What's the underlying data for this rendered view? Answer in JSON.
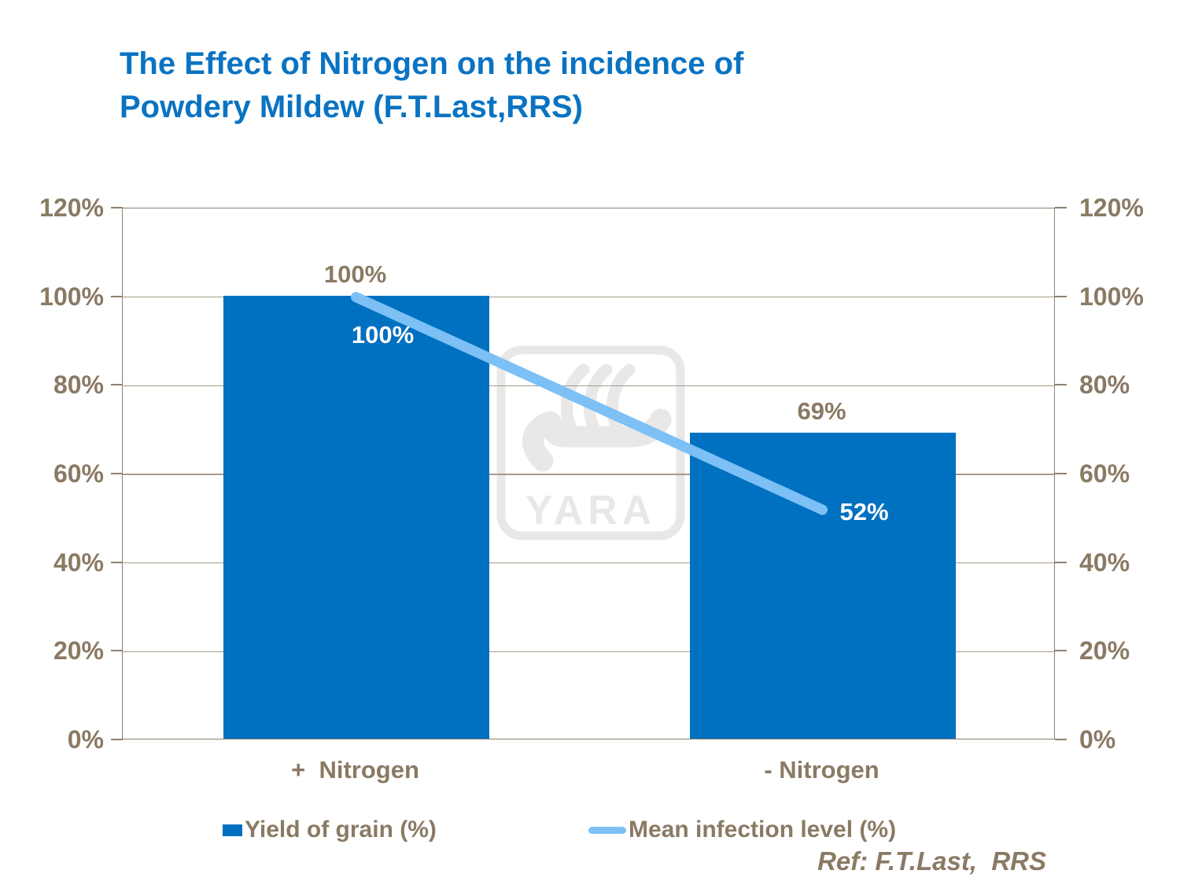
{
  "page": {
    "background": "#ffffff"
  },
  "title": {
    "lines": [
      "The Effect of Nitrogen on the incidence of",
      "Powdery Mildew (F.T.Last,RRS)"
    ]
  },
  "colors": {
    "title": "#0a73c2",
    "bar": "#0070c0",
    "line": "#7cc0f5",
    "text_brown": "#8a7a64",
    "axis": "#8f8070",
    "grid": "#a89a8a",
    "watermark": "#e8e8e8",
    "point_label": "#ffffff"
  },
  "chart_data": {
    "type": "combo",
    "categories": [
      "+  Nitrogen",
      "- Nitrogen"
    ],
    "series": [
      {
        "name": "Yield of grain (%)",
        "type": "bar",
        "values": [
          100,
          69
        ],
        "data_labels": [
          "100%",
          "69%"
        ]
      },
      {
        "name": "Mean infection level (%)",
        "type": "line",
        "values": [
          100,
          52
        ],
        "data_labels": [
          "100%",
          "52%"
        ],
        "label_placement": [
          "below-right",
          "right"
        ]
      }
    ],
    "ylim": [
      0,
      120
    ],
    "yticks": [
      {
        "value": 0,
        "label": "0%"
      },
      {
        "value": 20,
        "label": "20%"
      },
      {
        "value": 40,
        "label": "40%"
      },
      {
        "value": 60,
        "label": "60%"
      },
      {
        "value": 80,
        "label": "80%"
      },
      {
        "value": 100,
        "label": "100%"
      },
      {
        "value": 120,
        "label": "120%"
      }
    ],
    "grid": true,
    "dual_axis": true,
    "legend_position": "bottom"
  },
  "watermark": {
    "text": "YARA"
  },
  "footer": {
    "ref": "Ref: F.T.Last,  RRS"
  }
}
